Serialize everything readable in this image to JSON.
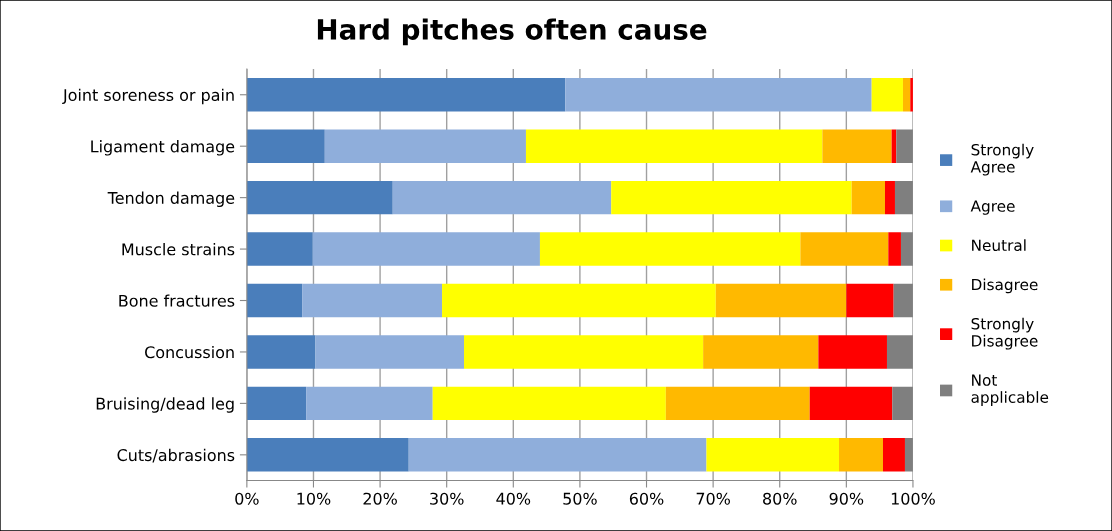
{
  "chart_data": {
    "type": "bar",
    "orientation": "horizontal",
    "stacked": true,
    "title": "Hard pitches often cause",
    "categories": [
      "Joint soreness or pain",
      "Ligament damage",
      "Tendon damage",
      "Muscle strains",
      "Bone fractures",
      "Concussion",
      "Bruising/dead leg",
      "Cuts/abrasions"
    ],
    "series": [
      {
        "name": "Strongly\nAgree",
        "color": "#4a7ebb",
        "values": [
          47.8,
          11.7,
          21.9,
          9.9,
          8.3,
          10.3,
          8.9,
          24.3
        ]
      },
      {
        "name": "Agree",
        "color": "#8faedb",
        "values": [
          46.0,
          30.2,
          32.8,
          34.1,
          21.0,
          22.3,
          19.0,
          44.7
        ]
      },
      {
        "name": "Neutral",
        "color": "#ffff00",
        "values": [
          4.7,
          44.5,
          36.1,
          39.1,
          41.1,
          35.9,
          35.0,
          19.9
        ]
      },
      {
        "name": "Disagree",
        "color": "#ffb900",
        "values": [
          1.1,
          10.4,
          5.0,
          13.2,
          19.6,
          17.3,
          21.6,
          6.6
        ]
      },
      {
        "name": "Strongly\nDisagree",
        "color": "#ff0000",
        "values": [
          0.4,
          0.7,
          1.5,
          1.9,
          7.1,
          10.3,
          12.4,
          3.3
        ]
      },
      {
        "name": "Not\napplicable",
        "color": "#7f7f7f",
        "values": [
          0,
          2.5,
          2.7,
          1.8,
          2.9,
          3.9,
          3.1,
          1.2
        ]
      }
    ],
    "xlim": [
      0,
      100
    ],
    "xticks": [
      {
        "value": 0,
        "label": "0%"
      },
      {
        "value": 10,
        "label": "10%"
      },
      {
        "value": 20,
        "label": "20%"
      },
      {
        "value": 30,
        "label": "30%"
      },
      {
        "value": 40,
        "label": "40%"
      },
      {
        "value": 50,
        "label": "50%"
      },
      {
        "value": 60,
        "label": "60%"
      },
      {
        "value": 70,
        "label": "70%"
      },
      {
        "value": 80,
        "label": "80%"
      },
      {
        "value": 90,
        "label": "90%"
      },
      {
        "value": 100,
        "label": "100%"
      }
    ],
    "grid": "x",
    "legend": "right"
  }
}
